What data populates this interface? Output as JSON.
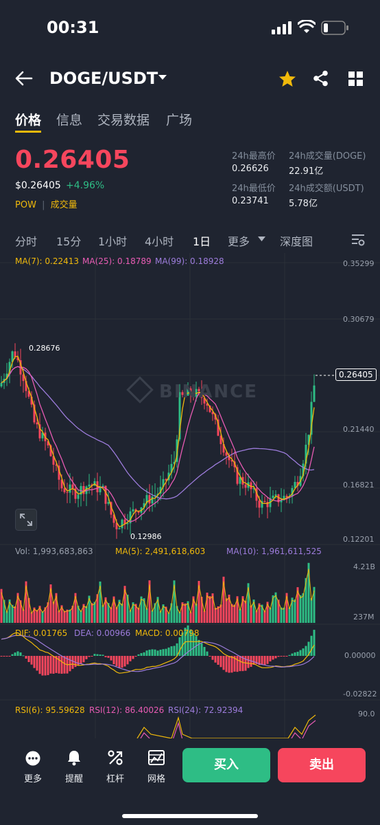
{
  "status": {
    "time": "00:31"
  },
  "header": {
    "pair": "DOGE/USDT"
  },
  "tabs": [
    {
      "label": "价格"
    },
    {
      "label": "信息"
    },
    {
      "label": "交易数据"
    },
    {
      "label": "广场"
    }
  ],
  "ticker": {
    "price": "0.26405",
    "usd_price": "$0.26405",
    "change": "+4.96%",
    "tag1": "POW",
    "tag2": "成交量",
    "high_label": "24h最高价",
    "high_value": "0.26626",
    "low_label": "24h最低价",
    "low_value": "0.23741",
    "vol_base_label": "24h成交量(DOGE)",
    "vol_base_value": "22.91亿",
    "vol_quote_label": "24h成交额(USDT)",
    "vol_quote_value": "5.78亿"
  },
  "timeframes": [
    "分时",
    "15分",
    "1小时",
    "4小时",
    "1日",
    "更多",
    "深度图"
  ],
  "timeframe_active": "1日",
  "main_chart": {
    "ma7": "MA(7): 0.22413",
    "ma25": "MA(25): 0.18789",
    "ma99": "MA(99): 0.18928",
    "y_ticks": [
      "0.35299",
      "0.30679",
      "0.21440",
      "0.16821",
      "0.12201"
    ],
    "current_price_label": "0.26405",
    "high_marker": "0.28676",
    "low_marker": "0.12986",
    "watermark": "BINANCE"
  },
  "volume_chart": {
    "vol": "Vol: 1,993,683,863",
    "ma5": "MA(5): 2,491,618,603",
    "ma10": "MA(10): 1,961,611,525",
    "y_ticks": [
      "4.21B",
      "237M"
    ]
  },
  "macd_chart": {
    "dif": "DIF: 0.01765",
    "dea": "DEA: 0.00966",
    "macd": "MACD: 0.00798",
    "y_ticks": [
      "0.00000",
      "-0.02822"
    ]
  },
  "rsi_chart": {
    "rsi6": "RSI(6): 95.59628",
    "rsi12": "RSI(12): 86.40026",
    "rsi24": "RSI(24): 72.92394",
    "y_ticks": [
      "90.0"
    ]
  },
  "bottom": {
    "more": "更多",
    "alert": "提醒",
    "leverage": "杠杆",
    "grid": "网格",
    "buy": "买入",
    "sell": "卖出"
  },
  "colors": {
    "up": "#2ebd85",
    "down": "#f6465d",
    "accent": "#f0b90b",
    "ma7": "#f0b90b",
    "ma25": "#e85bb4",
    "ma99": "#9d7cdc"
  }
}
